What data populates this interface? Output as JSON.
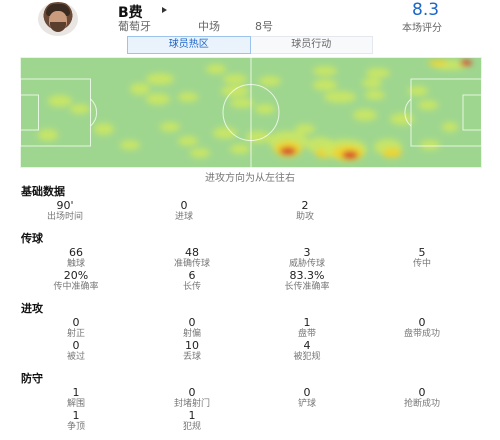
{
  "player": {
    "name": "B费",
    "country": "葡萄牙",
    "position": "中场",
    "number": "8号",
    "rating": "8.3",
    "rating_label": "本场评分"
  },
  "tabs": [
    {
      "label": "球员热区",
      "active": true
    },
    {
      "label": "球员行动",
      "active": false
    }
  ],
  "heatmap": {
    "caption": "进攻方向为从左往右",
    "colors": {
      "pitch": "#9fd68f",
      "low": "#cce860",
      "mid": "#f2d22a",
      "high": "#d6382a"
    }
  },
  "sections": {
    "basic": {
      "title": "基础数据",
      "stats": [
        {
          "value": "90'",
          "label": "出场时间"
        },
        {
          "value": "0",
          "label": "进球"
        },
        {
          "value": "2",
          "label": "助攻"
        }
      ]
    },
    "passing": {
      "title": "传球",
      "stats": [
        {
          "value": "66",
          "label": "触球"
        },
        {
          "value": "48",
          "label": "准确传球"
        },
        {
          "value": "3",
          "label": "威胁传球"
        },
        {
          "value": "5",
          "label": "传中"
        },
        {
          "value": "20%",
          "label": "传中准确率"
        },
        {
          "value": "6",
          "label": "长传"
        },
        {
          "value": "83.3%",
          "label": "长传准确率"
        }
      ]
    },
    "attack": {
      "title": "进攻",
      "stats": [
        {
          "value": "0",
          "label": "射正"
        },
        {
          "value": "0",
          "label": "射偏"
        },
        {
          "value": "1",
          "label": "盘带"
        },
        {
          "value": "0",
          "label": "盘带成功"
        },
        {
          "value": "0",
          "label": "被过"
        },
        {
          "value": "10",
          "label": "丢球"
        },
        {
          "value": "4",
          "label": "被犯规"
        }
      ]
    },
    "defense": {
      "title": "防守",
      "stats": [
        {
          "value": "1",
          "label": "解围"
        },
        {
          "value": "0",
          "label": "封堵射门"
        },
        {
          "value": "0",
          "label": "铲球"
        },
        {
          "value": "0",
          "label": "抢断成功"
        },
        {
          "value": "1",
          "label": "争顶"
        },
        {
          "value": "1",
          "label": "犯规"
        }
      ]
    }
  }
}
